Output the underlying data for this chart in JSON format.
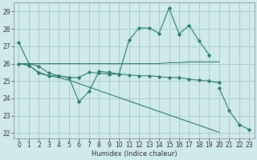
{
  "xlabel": "Humidex (Indice chaleur)",
  "ylabel": "",
  "bg_color": "#ceeaea",
  "grid_color": "#aacfcf",
  "line_color": "#2e7d6e",
  "xlim": [
    -0.5,
    23.5
  ],
  "ylim": [
    21.7,
    29.5
  ],
  "yticks": [
    22,
    23,
    24,
    25,
    26,
    27,
    28,
    29
  ],
  "xticks": [
    0,
    1,
    2,
    3,
    4,
    5,
    6,
    7,
    8,
    9,
    10,
    11,
    12,
    13,
    14,
    15,
    16,
    17,
    18,
    19,
    20,
    21,
    22,
    23
  ],
  "series": [
    {
      "y": [
        27.2,
        26.0,
        25.85,
        25.45,
        25.3,
        25.2,
        23.8,
        24.4,
        25.55,
        25.5,
        25.4,
        27.35,
        28.05,
        28.05,
        27.75,
        29.2,
        27.7,
        28.2,
        27.3,
        26.5,
        null,
        null,
        null,
        null
      ],
      "markers": true,
      "end": 19
    },
    {
      "y": [
        26.0,
        26.0,
        26.0,
        26.0,
        26.0,
        26.0,
        26.0,
        26.0,
        26.0,
        26.0,
        26.0,
        26.0,
        26.0,
        26.0,
        26.0,
        26.05,
        26.05,
        26.1,
        26.1,
        26.1,
        26.1,
        null,
        null,
        null
      ],
      "markers": false,
      "end": 20
    },
    {
      "y": [
        26.0,
        25.9,
        25.45,
        25.3,
        25.3,
        25.2,
        25.2,
        25.5,
        25.45,
        25.4,
        25.4,
        25.35,
        25.3,
        25.3,
        25.25,
        25.2,
        25.2,
        25.1,
        25.05,
        25.0,
        24.9,
        null,
        null,
        null
      ],
      "markers": true,
      "end": 20
    },
    {
      "y": [
        26.0,
        25.9,
        25.5,
        25.3,
        25.2,
        25.05,
        24.85,
        24.65,
        24.45,
        24.25,
        24.05,
        23.85,
        23.65,
        23.45,
        23.25,
        23.05,
        22.85,
        22.65,
        22.45,
        22.25,
        22.05,
        null,
        null,
        null
      ],
      "markers": false,
      "end": 20
    },
    {
      "y": [
        null,
        null,
        null,
        null,
        null,
        null,
        null,
        null,
        null,
        null,
        null,
        null,
        null,
        null,
        null,
        null,
        null,
        null,
        null,
        null,
        24.6,
        23.3,
        22.5,
        22.2
      ],
      "markers": true,
      "end": 23
    }
  ],
  "tick_fontsize": 5.5,
  "xlabel_fontsize": 6.0
}
